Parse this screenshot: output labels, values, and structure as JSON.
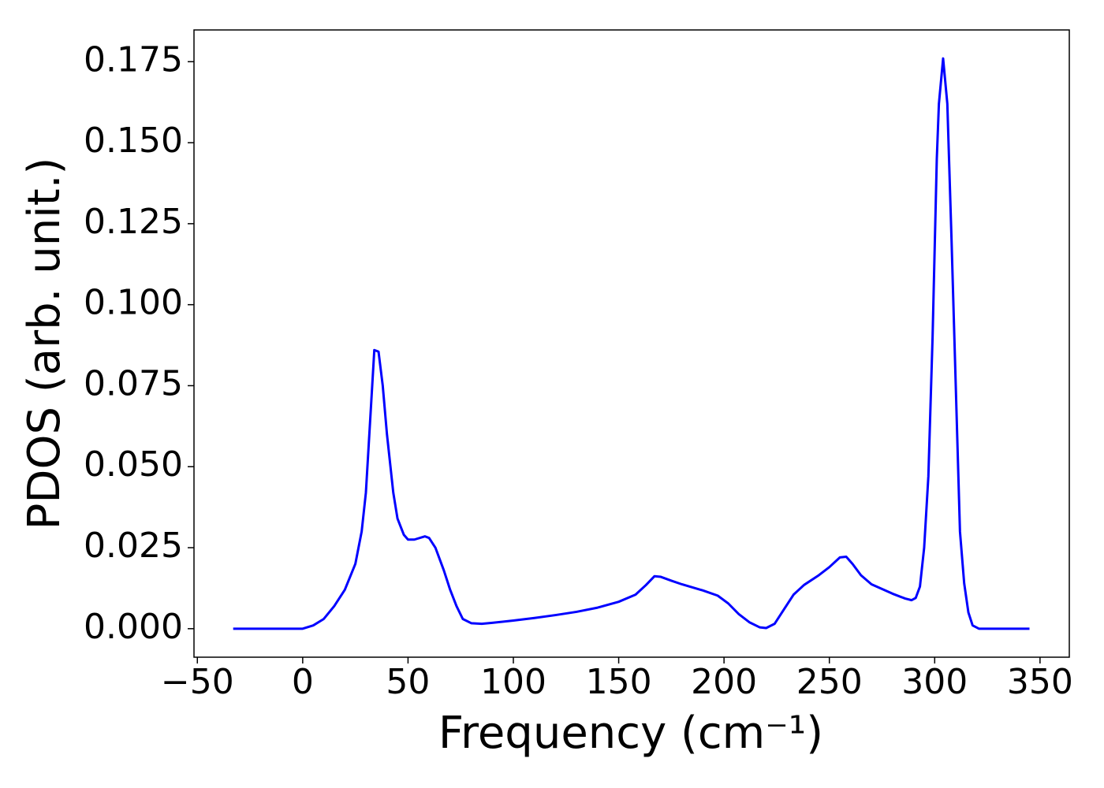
{
  "chart_data": {
    "type": "line",
    "xlabel": "Frequency (cm⁻¹)",
    "ylabel": "PDOS (arb. unit.)",
    "x": [
      -33,
      0,
      5,
      10,
      15,
      20,
      25,
      28,
      30,
      33,
      34,
      36,
      38,
      40,
      43,
      45,
      48,
      50,
      53,
      58,
      60,
      63,
      67,
      70,
      73,
      76,
      80,
      85,
      90,
      100,
      110,
      120,
      130,
      140,
      150,
      158,
      163,
      167,
      170,
      175,
      180,
      190,
      197,
      202,
      207,
      212,
      217,
      220,
      224,
      228,
      233,
      238,
      245,
      250,
      255,
      258,
      261,
      265,
      270,
      280,
      286,
      289,
      291,
      293,
      295,
      297,
      299,
      301,
      302,
      304,
      306,
      308,
      310,
      312,
      314,
      316,
      318,
      321,
      345
    ],
    "series": [
      {
        "name": "PDOS",
        "color": "#0000ff",
        "values": [
          0,
          0,
          0.001,
          0.003,
          0.007,
          0.012,
          0.02,
          0.03,
          0.042,
          0.075,
          0.086,
          0.0855,
          0.075,
          0.06,
          0.042,
          0.034,
          0.029,
          0.0275,
          0.0275,
          0.0285,
          0.028,
          0.025,
          0.018,
          0.012,
          0.007,
          0.003,
          0.0017,
          0.0015,
          0.0018,
          0.0025,
          0.0033,
          0.0042,
          0.0052,
          0.0065,
          0.0083,
          0.0105,
          0.0135,
          0.0162,
          0.016,
          0.0148,
          0.0137,
          0.0118,
          0.0102,
          0.0078,
          0.0045,
          0.002,
          0.0004,
          0.0002,
          0.0015,
          0.0055,
          0.0105,
          0.0135,
          0.0165,
          0.019,
          0.022,
          0.0222,
          0.02,
          0.0165,
          0.0137,
          0.0108,
          0.0093,
          0.0088,
          0.0095,
          0.013,
          0.025,
          0.047,
          0.09,
          0.145,
          0.162,
          0.176,
          0.162,
          0.12,
          0.075,
          0.03,
          0.014,
          0.005,
          0.001,
          0,
          0
        ]
      }
    ],
    "xlim": [
      -51.6,
      363.9
    ],
    "xticks": [
      {
        "value": -50,
        "label": "−50"
      },
      0,
      50,
      100,
      150,
      200,
      250,
      300,
      350
    ],
    "ylim": [
      -0.0088,
      0.1848
    ],
    "yticks": [
      {
        "value": 0,
        "label": "0.000"
      },
      {
        "value": 0.025,
        "label": "0.025"
      },
      {
        "value": 0.05,
        "label": "0.050"
      },
      {
        "value": 0.075,
        "label": "0.075"
      },
      {
        "value": 0.1,
        "label": "0.100"
      },
      {
        "value": 0.125,
        "label": "0.125"
      },
      {
        "value": 0.15,
        "label": "0.150"
      },
      {
        "value": 0.175,
        "label": "0.175"
      }
    ],
    "grid": false
  }
}
